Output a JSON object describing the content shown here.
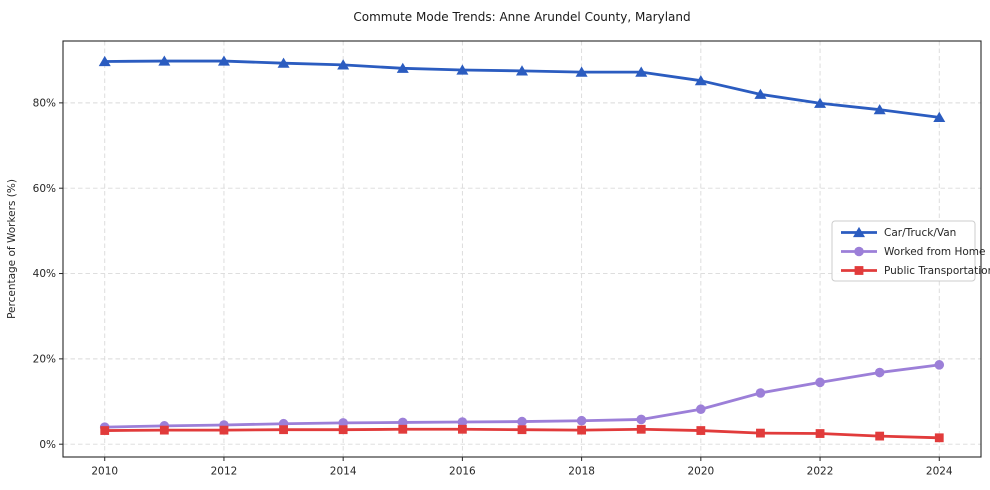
{
  "chart_data": {
    "type": "line",
    "title": "Commute Mode Trends: Anne Arundel County, Maryland",
    "xlabel": "",
    "ylabel": "Percentage of Workers (%)",
    "x": [
      2010,
      2011,
      2012,
      2013,
      2014,
      2015,
      2016,
      2017,
      2018,
      2019,
      2020,
      2021,
      2022,
      2023,
      2024
    ],
    "series": [
      {
        "name": "Car/Truck/Van",
        "marker": "triangle",
        "color": "#2b5cc0",
        "values": [
          89.7,
          89.8,
          89.8,
          89.3,
          88.9,
          88.1,
          87.7,
          87.5,
          87.2,
          87.2,
          85.2,
          82.0,
          79.9,
          78.4,
          76.6
        ]
      },
      {
        "name": "Worked from Home",
        "marker": "circle",
        "color": "#9c7fd8",
        "values": [
          4.0,
          4.3,
          4.5,
          4.8,
          5.0,
          5.1,
          5.2,
          5.3,
          5.5,
          5.8,
          8.2,
          12.0,
          14.5,
          16.8,
          18.6
        ]
      },
      {
        "name": "Public Transportation",
        "marker": "square",
        "color": "#e13b3b",
        "values": [
          3.2,
          3.3,
          3.3,
          3.4,
          3.4,
          3.5,
          3.5,
          3.4,
          3.3,
          3.5,
          3.2,
          2.6,
          2.5,
          1.9,
          1.5
        ]
      }
    ],
    "xticks": [
      2010,
      2012,
      2014,
      2016,
      2018,
      2020,
      2022,
      2024
    ],
    "yticks": [
      0,
      20,
      40,
      60,
      80
    ],
    "ytick_labels": [
      "0%",
      "20%",
      "40%",
      "60%",
      "80%"
    ],
    "xlim": [
      2009.3,
      2024.7
    ],
    "ylim": [
      -3,
      94.5
    ],
    "grid": true,
    "legend": {
      "position": "center right",
      "entries": [
        "Car/Truck/Van",
        "Worked from Home",
        "Public Transportation"
      ]
    },
    "colors": {
      "grid": "#d9d9d9",
      "spine": "#262626",
      "text": "#262626",
      "legend_border": "#cccccc",
      "background": "#ffffff"
    }
  }
}
